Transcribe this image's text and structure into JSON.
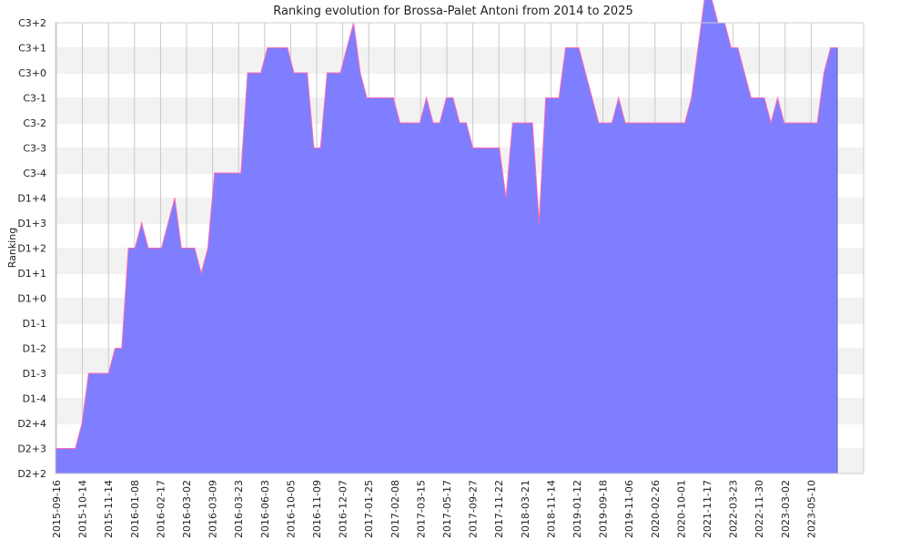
{
  "chart_data": {
    "type": "area",
    "title": "Ranking evolution for Brossa-Palet Antoni from 2014 to 2025",
    "xlabel": "",
    "ylabel": "Ranking",
    "y_ticks": [
      "D2+2",
      "D2+3",
      "D2+4",
      "D1-4",
      "D1-3",
      "D1-2",
      "D1-1",
      "D1+0",
      "D1+1",
      "D1+2",
      "D1+3",
      "D1+4",
      "C3-4",
      "C3-3",
      "C3-2",
      "C3-1",
      "C3+0",
      "C3+1",
      "C3+2"
    ],
    "x_ticks": [
      "2015-09-16",
      "2015-10-14",
      "2015-11-14",
      "2016-01-08",
      "2016-02-17",
      "2016-03-02",
      "2016-03-09",
      "2016-03-23",
      "2016-06-03",
      "2016-10-05",
      "2016-11-09",
      "2016-12-07",
      "2017-01-25",
      "2017-02-08",
      "2017-03-15",
      "2017-05-17",
      "2017-09-27",
      "2017-11-22",
      "2018-03-21",
      "2018-11-14",
      "2019-01-12",
      "2019-09-18",
      "2019-11-06",
      "2020-02-26",
      "2020-10-01",
      "2021-11-17",
      "2022-03-23",
      "2022-11-30",
      "2023-03-02",
      "2023-05-10"
    ],
    "series": [
      {
        "values": [
          1,
          1,
          1,
          1,
          2,
          4,
          4,
          4,
          4,
          5,
          5,
          9,
          9,
          10,
          9,
          9,
          9,
          10,
          11,
          9,
          9,
          9,
          8,
          9,
          12,
          12,
          12,
          12,
          12,
          16,
          16,
          16,
          17,
          17,
          17,
          17,
          16,
          16,
          16,
          13,
          13,
          16,
          16,
          16,
          17,
          18,
          16,
          15,
          15,
          15,
          15,
          15,
          14,
          14,
          14,
          14,
          15,
          14,
          14,
          15,
          15,
          14,
          14,
          13,
          13,
          13,
          13,
          13,
          11,
          14,
          14,
          14,
          14,
          10,
          15,
          15,
          15,
          17,
          17,
          17,
          16,
          15,
          14,
          14,
          14,
          15,
          14,
          14,
          14,
          14,
          14,
          14,
          14,
          14,
          14,
          14,
          15,
          17,
          19,
          19,
          18,
          18,
          17,
          17,
          16,
          15,
          15,
          15,
          14,
          15,
          14,
          14,
          14,
          14,
          14,
          14,
          16,
          17,
          17
        ]
      }
    ],
    "colors": {
      "fill": "#7b7bff",
      "line": "#ff69b4",
      "band_light": "#ffffff",
      "band_dark": "#f2f2f2",
      "grid": "#c8c8c8"
    },
    "grid": true,
    "legend": "none"
  }
}
